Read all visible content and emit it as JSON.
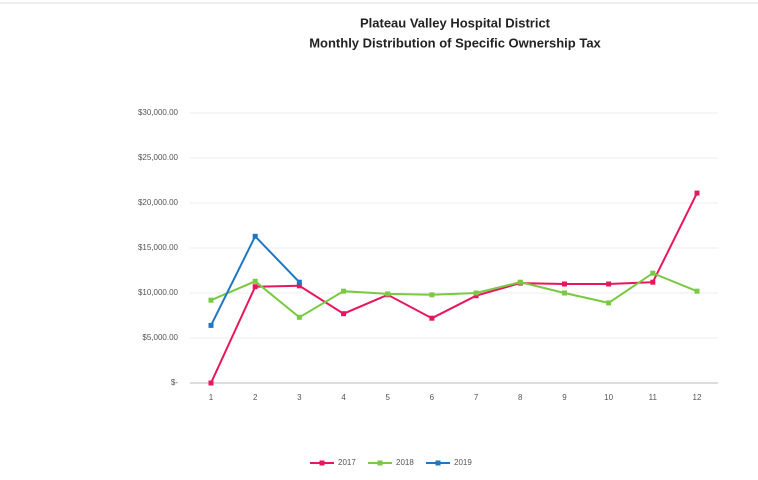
{
  "chart_data": {
    "type": "line",
    "title": "Plateau Valley Hospital District",
    "subtitle": "Monthly Distribution of Specific Ownership Tax",
    "x": [
      1,
      2,
      3,
      4,
      5,
      6,
      7,
      8,
      9,
      10,
      11,
      12
    ],
    "xlim": [
      1,
      12
    ],
    "ylim": [
      0,
      30000
    ],
    "yticks": [
      {
        "value": 0,
        "label": "$-"
      },
      {
        "value": 5000,
        "label": "$5,000.00"
      },
      {
        "value": 10000,
        "label": "$10,000.00"
      },
      {
        "value": 15000,
        "label": "$15,000.00"
      },
      {
        "value": 20000,
        "label": "$20,000.00"
      },
      {
        "value": 25000,
        "label": "$25,000.00"
      },
      {
        "value": 30000,
        "label": "$30,000.00"
      }
    ],
    "grid": true,
    "legend": "bottom",
    "series": [
      {
        "name": "2017",
        "color": "#e8175d",
        "values": [
          0,
          10700,
          10800,
          7700,
          9800,
          7200,
          9700,
          11100,
          11000,
          11000,
          11200,
          21100
        ]
      },
      {
        "name": "2018",
        "color": "#7ac943",
        "values": [
          9200,
          11300,
          7300,
          10200,
          9900,
          9800,
          10000,
          11200,
          10000,
          8900,
          12200,
          10200
        ]
      },
      {
        "name": "2019",
        "color": "#1f77c4",
        "values": [
          6400,
          16300,
          11200,
          null,
          null,
          null,
          null,
          null,
          null,
          null,
          null,
          null
        ]
      }
    ]
  }
}
